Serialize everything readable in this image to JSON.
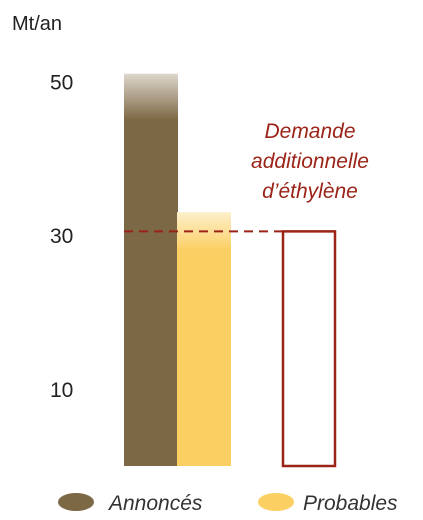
{
  "chart_data": {
    "type": "bar",
    "unit_label": "Mt/an",
    "y_ticks": [
      {
        "value": 50,
        "label": "50"
      },
      {
        "value": 30,
        "label": "30"
      },
      {
        "value": 10,
        "label": "10"
      }
    ],
    "ylim": [
      0,
      52
    ],
    "grid": false,
    "series": [
      {
        "name": "Annoncés",
        "value": 51,
        "color": "#7d6845",
        "faded_top": true
      },
      {
        "name": "Probables",
        "value": 33,
        "color": "#fccf63",
        "faded_top": true
      }
    ],
    "additional_demand": {
      "lines": [
        "Demande",
        "additionnelle",
        "d’éthylène"
      ],
      "value": 30.5,
      "color": "#9b2318"
    },
    "legend": {
      "placement": "bottom",
      "items": [
        {
          "label": "Annoncés",
          "color": "#7d6845"
        },
        {
          "label": "Probables",
          "color": "#fccf63"
        }
      ]
    }
  }
}
